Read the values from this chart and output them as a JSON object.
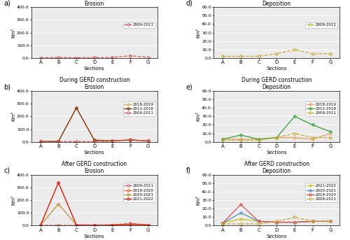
{
  "sections": [
    "A",
    "B",
    "C",
    "D",
    "E",
    "F",
    "G"
  ],
  "erosion": {
    "before": {
      "2009-2011": [
        2,
        3,
        2,
        3,
        4,
        18,
        5
      ]
    },
    "during": {
      "2018-2019": [
        2,
        3,
        265,
        15,
        8,
        15,
        8
      ],
      "2011-2018": [
        2,
        3,
        268,
        12,
        7,
        14,
        7
      ],
      "2009-2011": [
        2,
        3,
        2,
        3,
        4,
        18,
        5
      ]
    },
    "after": {
      "2009-2011": [
        2,
        3,
        2,
        3,
        4,
        18,
        5
      ],
      "2019-2020": [
        3,
        338,
        5,
        4,
        5,
        10,
        5
      ],
      "2020-2021": [
        3,
        170,
        5,
        4,
        5,
        10,
        5
      ],
      "2021-2022": [
        3,
        338,
        5,
        4,
        5,
        10,
        5
      ]
    }
  },
  "deposition": {
    "before": {
      "2009-2011": [
        2,
        2,
        2,
        5,
        10,
        5,
        5
      ]
    },
    "during": {
      "2018-2019": [
        3,
        3,
        3,
        5,
        5,
        3,
        10
      ],
      "2011-2018": [
        3,
        8,
        3,
        5,
        30,
        20,
        12
      ],
      "2009-2011": [
        2,
        2,
        2,
        5,
        10,
        5,
        5
      ]
    },
    "after": {
      "2009-2011": [
        2,
        2,
        2,
        5,
        10,
        5,
        5
      ],
      "2019-2020": [
        3,
        25,
        5,
        4,
        4,
        5,
        5
      ],
      "2020-2021": [
        3,
        15,
        5,
        4,
        4,
        5,
        5
      ],
      "2021-2022": [
        3,
        8,
        5,
        4,
        4,
        5,
        5
      ]
    }
  },
  "erosion_ylim": [
    0,
    400
  ],
  "erosion_yticks": [
    0.0,
    100.0,
    200.0,
    300.0,
    400.0
  ],
  "deposition_ylim": [
    0,
    60
  ],
  "deposition_yticks": [
    0.0,
    10.0,
    20.0,
    30.0,
    40.0,
    50.0,
    60.0
  ],
  "e_colors": {
    "2009-2011": "#e05050",
    "2011-2018": "#7B3000",
    "2018-2019": "#e8a060",
    "2019-2020": "#e87030",
    "2020-2021": "#c09030",
    "2021-2022": "#e02020"
  },
  "d_colors": {
    "2009-2011": "#c8a830",
    "2011-2018": "#30a030",
    "2018-2019": "#e8a060",
    "2019-2020": "#e05050",
    "2020-2021": "#5090c0",
    "2021-2022": "#c8c020"
  },
  "titles": {
    "a": "Before GERD construction\nErosion",
    "b": "During GERD construction\nErosion",
    "c": "After GERD construction\nErosion",
    "d": "Before GERD construction\nDeposition",
    "e": "During GERD construction\nDeposition",
    "f": "After GERD construction\nDeposition"
  },
  "ylabel": "Km²",
  "xlabel": "Sections"
}
